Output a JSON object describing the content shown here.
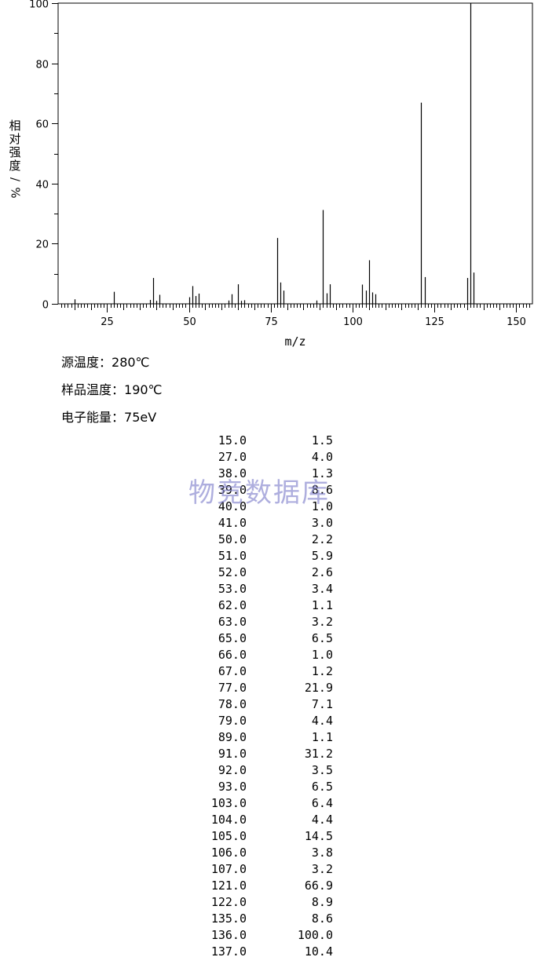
{
  "chart_data": {
    "type": "bar",
    "xlabel": "m/z",
    "ylabel_chars": [
      "相",
      "对",
      "强",
      "度",
      "/",
      "%"
    ],
    "xlim": [
      10,
      155
    ],
    "ylim": [
      0,
      100
    ],
    "xticks": [
      25,
      50,
      75,
      100,
      125,
      150
    ],
    "yticks": [
      0,
      20,
      40,
      60,
      80,
      100
    ],
    "grid": false,
    "x": [
      15.0,
      27.0,
      38.0,
      39.0,
      40.0,
      41.0,
      50.0,
      51.0,
      52.0,
      53.0,
      62.0,
      63.0,
      65.0,
      66.0,
      67.0,
      77.0,
      78.0,
      79.0,
      89.0,
      91.0,
      92.0,
      93.0,
      103.0,
      104.0,
      105.0,
      106.0,
      107.0,
      121.0,
      122.0,
      135.0,
      136.0,
      137.0
    ],
    "values": [
      1.5,
      4.0,
      1.3,
      8.6,
      1.0,
      3.0,
      2.2,
      5.9,
      2.6,
      3.4,
      1.1,
      3.2,
      6.5,
      1.0,
      1.2,
      21.9,
      7.1,
      4.4,
      1.1,
      31.2,
      3.5,
      6.5,
      6.4,
      4.4,
      14.5,
      3.8,
      3.2,
      66.9,
      8.9,
      8.6,
      100.0,
      10.4
    ]
  },
  "conditions": [
    {
      "name": "源温度：",
      "value": "280℃"
    },
    {
      "name": "样品温度：",
      "value": "190℃"
    },
    {
      "name": "电子能量：",
      "value": "75eV"
    }
  ],
  "peak_table": [
    [
      "15.0",
      "1.5"
    ],
    [
      "27.0",
      "4.0"
    ],
    [
      "38.0",
      "1.3"
    ],
    [
      "39.0",
      "8.6"
    ],
    [
      "40.0",
      "1.0"
    ],
    [
      "41.0",
      "3.0"
    ],
    [
      "50.0",
      "2.2"
    ],
    [
      "51.0",
      "5.9"
    ],
    [
      "52.0",
      "2.6"
    ],
    [
      "53.0",
      "3.4"
    ],
    [
      "62.0",
      "1.1"
    ],
    [
      "63.0",
      "3.2"
    ],
    [
      "65.0",
      "6.5"
    ],
    [
      "66.0",
      "1.0"
    ],
    [
      "67.0",
      "1.2"
    ],
    [
      "77.0",
      "21.9"
    ],
    [
      "78.0",
      "7.1"
    ],
    [
      "79.0",
      "4.4"
    ],
    [
      "89.0",
      "1.1"
    ],
    [
      "91.0",
      "31.2"
    ],
    [
      "92.0",
      "3.5"
    ],
    [
      "93.0",
      "6.5"
    ],
    [
      "103.0",
      "6.4"
    ],
    [
      "104.0",
      "4.4"
    ],
    [
      "105.0",
      "14.5"
    ],
    [
      "106.0",
      "3.8"
    ],
    [
      "107.0",
      "3.2"
    ],
    [
      "121.0",
      "66.9"
    ],
    [
      "122.0",
      "8.9"
    ],
    [
      "135.0",
      "8.6"
    ],
    [
      "136.0",
      "100.0"
    ],
    [
      "137.0",
      "10.4"
    ]
  ],
  "watermark": "物竞数据库"
}
